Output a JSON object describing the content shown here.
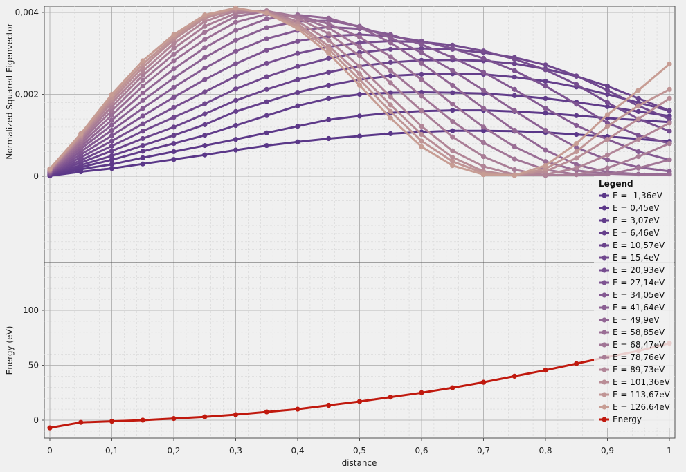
{
  "chart_data": {
    "type": "line",
    "xlabel": "distance",
    "x_ticks": [
      "0",
      "0,1",
      "0,2",
      "0,3",
      "0,4",
      "0,5",
      "0,6",
      "0,7",
      "0,8",
      "0,9",
      "1"
    ],
    "xlim": [
      0,
      1
    ],
    "grid": true,
    "legend_title": "Legend",
    "legend_placement": "right",
    "upper": {
      "ylabel": "Normalized Squared Eigenvector",
      "ylim": [
        0,
        0.004
      ],
      "y_ticks": [
        "0",
        "0,002",
        "0,004"
      ],
      "x": [
        0,
        0.05,
        0.1,
        0.15,
        0.2,
        0.25,
        0.3,
        0.35,
        0.4,
        0.45,
        0.5,
        0.55,
        0.6,
        0.65,
        0.7,
        0.75,
        0.8,
        0.85,
        0.9,
        0.95,
        1
      ],
      "series": [
        {
          "name": "E = -1,36eV",
          "color": "#5a3788",
          "values": [
            1e-05,
            0.00011,
            0.00019,
            0.0003,
            0.00041,
            0.00052,
            0.00064,
            0.00075,
            0.00084,
            0.00092,
            0.00098,
            0.00104,
            0.00108,
            0.00111,
            0.00111,
            0.0011,
            0.00107,
            0.00102,
            0.00097,
            0.00091,
            0.00085
          ]
        },
        {
          "name": "E = 0,45eV",
          "color": "#5d3989",
          "values": [
            2e-05,
            0.00017,
            0.00029,
            0.00045,
            0.0006,
            0.00075,
            0.0009,
            0.00106,
            0.00122,
            0.00138,
            0.00147,
            0.00155,
            0.00159,
            0.00161,
            0.00161,
            0.00158,
            0.00154,
            0.00148,
            0.00142,
            0.00137,
            0.00132
          ]
        },
        {
          "name": "E = 3,07eV",
          "color": "#613c8a",
          "values": [
            3e-05,
            0.00022,
            0.0004,
            0.00061,
            0.0008,
            0.001,
            0.00124,
            0.00148,
            0.00172,
            0.0019,
            0.002,
            0.00204,
            0.00205,
            0.00204,
            0.00202,
            0.00197,
            0.0019,
            0.00181,
            0.0017,
            0.00158,
            0.00147
          ]
        },
        {
          "name": "E = 6,46eV",
          "color": "#653f8b",
          "values": [
            4e-05,
            0.00027,
            0.0005,
            0.00075,
            0.001,
            0.00126,
            0.00158,
            0.00182,
            0.00205,
            0.00222,
            0.00236,
            0.00245,
            0.00249,
            0.0025,
            0.00249,
            0.00242,
            0.00232,
            0.00218,
            0.002,
            0.0018,
            0.0016
          ]
        },
        {
          "name": "E = 10,57eV",
          "color": "#6a438c",
          "values": [
            5e-05,
            0.00033,
            0.00062,
            0.00092,
            0.0012,
            0.00152,
            0.00185,
            0.00212,
            0.00236,
            0.00254,
            0.00269,
            0.00278,
            0.00283,
            0.00284,
            0.00282,
            0.00275,
            0.00262,
            0.00244,
            0.0022,
            0.0019,
            0.0016
          ]
        },
        {
          "name": "E = 15,4eV",
          "color": "#70488e",
          "values": [
            6e-05,
            0.00039,
            0.00074,
            0.0011,
            0.00144,
            0.00177,
            0.00213,
            0.00243,
            0.00268,
            0.00288,
            0.00302,
            0.0031,
            0.00312,
            0.0031,
            0.00302,
            0.0029,
            0.00272,
            0.00245,
            0.0021,
            0.00172,
            0.0014
          ]
        },
        {
          "name": "E = 20,93eV",
          "color": "#764d8f",
          "values": [
            7e-05,
            0.00046,
            0.00086,
            0.00128,
            0.00168,
            0.00206,
            0.00244,
            0.00276,
            0.003,
            0.00316,
            0.00326,
            0.0033,
            0.00328,
            0.0032,
            0.00306,
            0.00286,
            0.0026,
            0.00224,
            0.0018,
            0.0014,
            0.0011
          ]
        },
        {
          "name": "E = 27,14eV",
          "color": "#7d5391",
          "values": [
            8e-05,
            0.00053,
            0.00099,
            0.00147,
            0.00193,
            0.00236,
            0.00275,
            0.00308,
            0.0033,
            0.00342,
            0.00346,
            0.00342,
            0.0033,
            0.00312,
            0.00288,
            0.00258,
            0.0022,
            0.00176,
            0.0013,
            0.001,
            0.0008
          ]
        },
        {
          "name": "E = 34,05eV",
          "color": "#845992",
          "values": [
            9e-05,
            0.0006,
            0.00112,
            0.00166,
            0.00217,
            0.00264,
            0.00305,
            0.00336,
            0.00356,
            0.00364,
            0.0036,
            0.00346,
            0.00322,
            0.0029,
            0.00254,
            0.00212,
            0.00166,
            0.00124,
            0.0009,
            0.0006,
            0.0004
          ]
        },
        {
          "name": "E = 41,64eV",
          "color": "#8b6093",
          "values": [
            0.0001,
            0.00067,
            0.00125,
            0.00185,
            0.0024,
            0.0029,
            0.00332,
            0.00363,
            0.00378,
            0.0038,
            0.00366,
            0.00338,
            0.00302,
            0.00258,
            0.0021,
            0.0016,
            0.00112,
            0.0007,
            0.0004,
            0.00022,
            0.00012
          ]
        },
        {
          "name": "E = 49,9eV",
          "color": "#926694",
          "values": [
            0.00011,
            0.00073,
            0.00137,
            0.00203,
            0.00262,
            0.00314,
            0.00356,
            0.00384,
            0.00394,
            0.00386,
            0.00364,
            0.00326,
            0.00276,
            0.00222,
            0.00166,
            0.00112,
            0.00064,
            0.00028,
            0.0001,
            5e-05,
            5e-05
          ]
        },
        {
          "name": "E = 58,85eV",
          "color": "#9a6e95",
          "values": [
            0.00012,
            0.00079,
            0.00149,
            0.0022,
            0.00282,
            0.00334,
            0.00376,
            0.00396,
            0.00392,
            0.00372,
            0.0034,
            0.00292,
            0.00236,
            0.00176,
            0.0012,
            0.00072,
            0.00036,
            0.00014,
            6e-05,
            4e-05,
            4e-05
          ]
        },
        {
          "name": "E = 68,47eV",
          "color": "#a17596",
          "values": [
            0.00013,
            0.00085,
            0.0016,
            0.00234,
            0.00298,
            0.00352,
            0.0039,
            0.00403,
            0.0039,
            0.00362,
            0.00316,
            0.00258,
            0.00196,
            0.00134,
            0.00082,
            0.00042,
            0.00016,
            4e-05,
            4e-05,
            0.0002,
            0.0004
          ]
        },
        {
          "name": "E = 78,76eV",
          "color": "#a97d96",
          "values": [
            0.00014,
            0.0009,
            0.0017,
            0.00246,
            0.00312,
            0.00366,
            0.00398,
            0.00404,
            0.00386,
            0.00348,
            0.00294,
            0.00228,
            0.0016,
            0.00096,
            0.00048,
            0.00016,
            2e-05,
            4e-05,
            0.0002,
            0.00048,
            0.0008
          ]
        },
        {
          "name": "E = 89,73eV",
          "color": "#b18597",
          "values": [
            0.00015,
            0.00094,
            0.00179,
            0.00256,
            0.00324,
            0.00378,
            0.00404,
            0.00402,
            0.00378,
            0.00332,
            0.00268,
            0.00194,
            0.00122,
            0.00062,
            0.00024,
            4e-05,
            4e-05,
            0.0002,
            0.00052,
            0.0009,
            0.0013
          ]
        },
        {
          "name": "E = 101,36eV",
          "color": "#b98d96",
          "values": [
            0.00016,
            0.00098,
            0.00186,
            0.00266,
            0.00334,
            0.00386,
            0.00408,
            0.004,
            0.00372,
            0.00318,
            0.0025,
            0.00174,
            0.00102,
            0.00046,
            0.00012,
            2e-05,
            0.00012,
            0.00044,
            0.0009,
            0.0014,
            0.0019
          ]
        },
        {
          "name": "E = 113,67eV",
          "color": "#c09595",
          "values": [
            0.00017,
            0.00101,
            0.00193,
            0.00274,
            0.0034,
            0.0039,
            0.0041,
            0.00399,
            0.00366,
            0.0031,
            0.00236,
            0.00158,
            0.00086,
            0.00036,
            8e-05,
            2e-05,
            0.00018,
            0.0006,
            0.00122,
            0.00172,
            0.00212
          ]
        },
        {
          "name": "E = 126,64eV",
          "color": "#c79d94",
          "values": [
            0.00018,
            0.00104,
            0.002,
            0.00282,
            0.00346,
            0.00394,
            0.00411,
            0.00398,
            0.0036,
            0.003,
            0.00222,
            0.00142,
            0.00072,
            0.00026,
            4e-05,
            2e-05,
            0.00026,
            0.0008,
            0.0015,
            0.0021,
            0.00274
          ]
        }
      ]
    },
    "lower": {
      "ylabel": "Energy (eV)",
      "ylim": [
        -7,
        142
      ],
      "y_ticks": [
        "0",
        "50",
        "100"
      ],
      "series": [
        {
          "name": "Energy",
          "color": "#c0190e",
          "x": [
            0,
            0.05,
            0.1,
            0.15,
            0.2,
            0.25,
            0.3,
            0.35,
            0.4,
            0.45,
            0.5,
            0.55,
            0.6,
            0.65,
            0.7,
            0.75,
            0.8,
            0.85,
            0.9,
            0.95,
            1
          ],
          "values": [
            -7.0,
            -2.0,
            -1.0,
            0.0,
            1.5,
            3.0,
            5.0,
            7.5,
            10.0,
            13.5,
            17.0,
            21.0,
            25.0,
            29.5,
            34.5,
            40.0,
            45.5,
            51.5,
            57.5,
            63.0,
            70.0
          ]
        }
      ]
    }
  }
}
